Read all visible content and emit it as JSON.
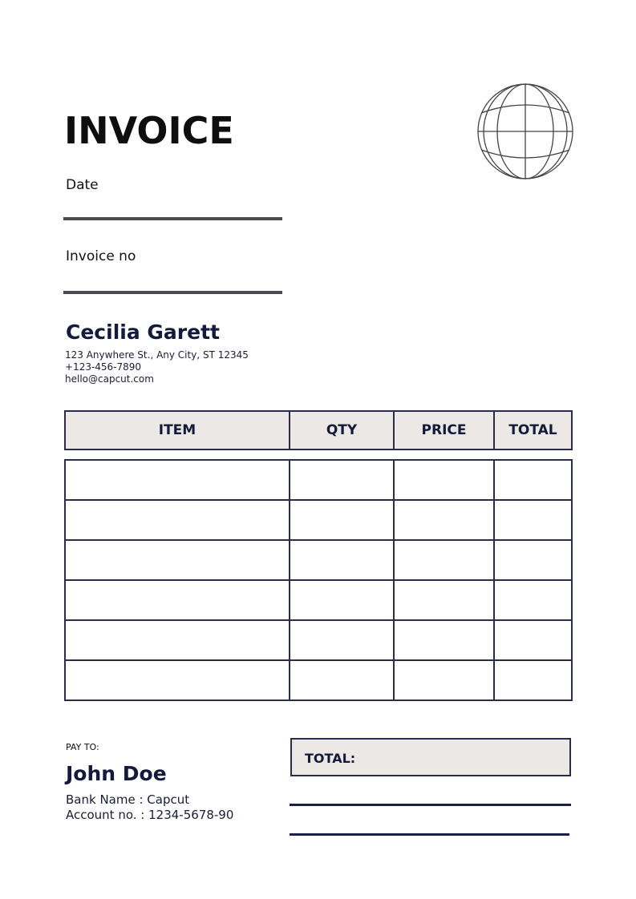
{
  "header": {
    "title": "INVOICE",
    "date_label": "Date",
    "invoice_no_label": "Invoice no",
    "logo": "globe-icon"
  },
  "sender": {
    "name": "Cecilia Garett",
    "address": "123 Anywhere St., Any City, ST 12345",
    "phone": "+123-456-7890",
    "email": "hello@capcut.com"
  },
  "table": {
    "columns": [
      "ITEM",
      "QTY",
      "PRICE",
      "TOTAL"
    ],
    "rows": [
      [
        "",
        "",
        "",
        ""
      ],
      [
        "",
        "",
        "",
        ""
      ],
      [
        "",
        "",
        "",
        ""
      ],
      [
        "",
        "",
        "",
        ""
      ],
      [
        "",
        "",
        "",
        ""
      ],
      [
        "",
        "",
        "",
        ""
      ]
    ]
  },
  "payment": {
    "pay_to_label": "PAY TO:",
    "name": "John Doe",
    "bank": "Bank Name : Capcut",
    "account": "Account no. : 1234-5678-90"
  },
  "totals": {
    "total_label": "TOTAL:"
  },
  "colors": {
    "navy": "#141a3c",
    "header_bg": "#ece8e6",
    "rule": "#4a4a52"
  }
}
